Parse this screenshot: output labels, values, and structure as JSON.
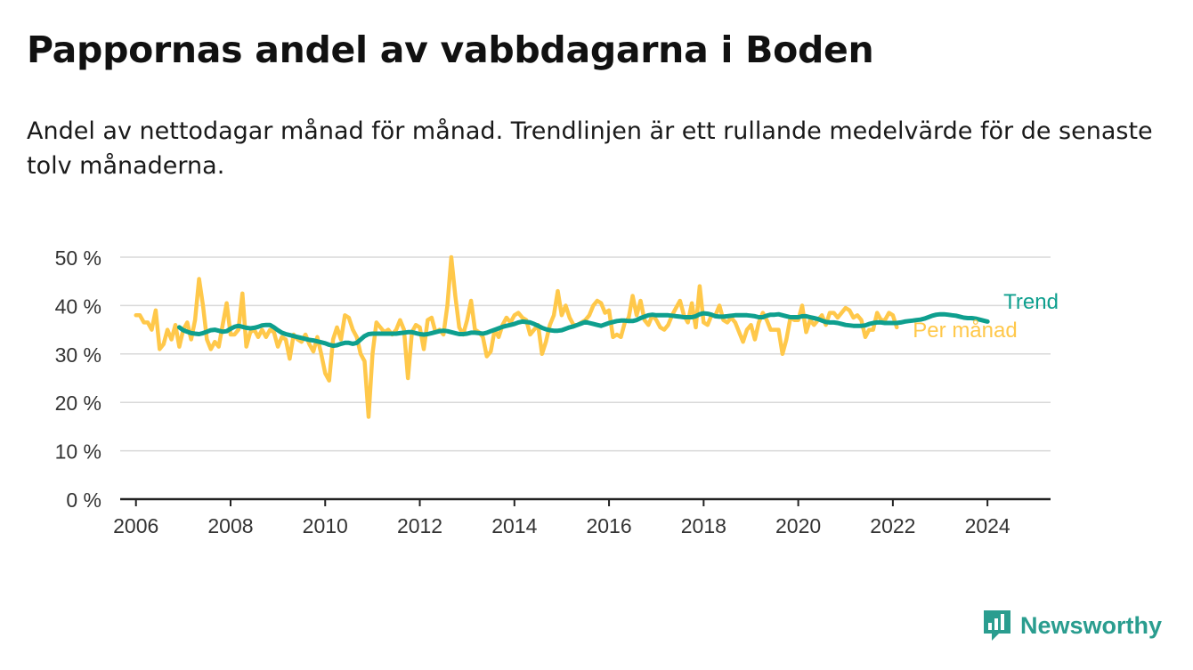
{
  "title": "Pappornas andel av vabbdagarna i Boden",
  "subtitle": "Andel av nettodagar månad för månad. Trendlinjen är ett rullande medelvärde för de senaste tolv månaderna.",
  "brand": {
    "name": "Newsworthy",
    "icon": "newsworthy-chart-logo-icon"
  },
  "colors": {
    "trend": "#0e9f8e",
    "monthly": "#ffc84a",
    "grid": "#d9d9d9",
    "axis": "#222222",
    "tick_text": "#333333"
  },
  "chart_data": {
    "type": "line",
    "title": "Pappornas andel av vabbdagarna i Boden",
    "ylabel": "",
    "xlabel": "",
    "ylim": [
      0,
      50
    ],
    "xlim": [
      "2005-09",
      "2025-05"
    ],
    "grid": true,
    "y_ticks": [
      "0 %",
      "10 %",
      "20 %",
      "30 %",
      "40 %",
      "50 %"
    ],
    "y_tick_values": [
      0,
      10,
      20,
      30,
      40,
      50
    ],
    "x_ticks": [
      "2006",
      "2008",
      "2010",
      "2012",
      "2014",
      "2016",
      "2018",
      "2020",
      "2022",
      "2024"
    ],
    "legend": "right-end labels",
    "series": [
      {
        "name": "Per månad",
        "start": "2006-01",
        "values": [
          38,
          38,
          36.5,
          36.5,
          35,
          39,
          31,
          32,
          35,
          33,
          36,
          31.5,
          35,
          36.5,
          33,
          37,
          45.5,
          40,
          33,
          31,
          32.5,
          31.5,
          36,
          40.5,
          34,
          34,
          35,
          42.5,
          31.5,
          34.5,
          35,
          33.5,
          35,
          33.5,
          35,
          34.5,
          31.5,
          33.5,
          33,
          29,
          34,
          33,
          32.5,
          34,
          32,
          30.5,
          33.5,
          30,
          26,
          24.5,
          33,
          35.5,
          33,
          38,
          37.5,
          35,
          33.5,
          30,
          28.5,
          17,
          30,
          36.5,
          35.5,
          34.5,
          35,
          34,
          35,
          37,
          35,
          25,
          34.5,
          36,
          35.5,
          31,
          37,
          37.5,
          34.5,
          35,
          34,
          40,
          50,
          42,
          35.5,
          34,
          37,
          41,
          35,
          34.5,
          33.5,
          29.5,
          30.5,
          35,
          33.5,
          36,
          37.5,
          36.5,
          38,
          38.5,
          37.5,
          37,
          34,
          35,
          36,
          30,
          32.5,
          36,
          38,
          43,
          38,
          40,
          37.5,
          36,
          36,
          36.5,
          37,
          38,
          40,
          41,
          40.5,
          38.5,
          39,
          33.5,
          34,
          33.5,
          36.5,
          37.5,
          42,
          38,
          41,
          37,
          36,
          38,
          37,
          35.5,
          35,
          36,
          38,
          39.5,
          41,
          38,
          36.5,
          40.5,
          35.5,
          44,
          36.5,
          36,
          38,
          38,
          40,
          37,
          36.5,
          37.5,
          36.5,
          34.5,
          32.5,
          35,
          36,
          33,
          36.5,
          38.5,
          37,
          35,
          35,
          35,
          30,
          33,
          37.5,
          37,
          37,
          40,
          34.5,
          37,
          36,
          37,
          38,
          36,
          38.5,
          38.5,
          37.5,
          38.5,
          39.5,
          39,
          37.5,
          38,
          37,
          33.5,
          35,
          35,
          38.5,
          37,
          37,
          38.5,
          38,
          35.5
        ]
      },
      {
        "name": "Trend",
        "start": "2006-12",
        "values": [
          35.5,
          34.9,
          34.6,
          34.3,
          34.2,
          34.1,
          34.3,
          34.6,
          34.9,
          35,
          34.8,
          34.6,
          34.7,
          35.2,
          35.6,
          35.8,
          35.6,
          35.4,
          35.3,
          35.4,
          35.6,
          35.9,
          36,
          36,
          35.5,
          34.9,
          34.4,
          34.1,
          33.9,
          33.7,
          33.5,
          33.3,
          33.1,
          32.9,
          32.8,
          32.6,
          32.4,
          32.2,
          31.9,
          31.7,
          31.8,
          32.1,
          32.3,
          32.3,
          32.1,
          32.3,
          33,
          33.7,
          34.1,
          34.2,
          34.2,
          34.2,
          34.2,
          34.2,
          34.2,
          34.2,
          34.3,
          34.4,
          34.5,
          34.5,
          34.3,
          34.1,
          34,
          34.1,
          34.3,
          34.5,
          34.7,
          34.8,
          34.7,
          34.5,
          34.3,
          34.1,
          34.1,
          34.2,
          34.4,
          34.4,
          34.3,
          34.2,
          34.4,
          34.7,
          35,
          35.3,
          35.6,
          35.8,
          36,
          36.2,
          36.5,
          36.7,
          36.6,
          36.5,
          36.2,
          35.8,
          35.4,
          35.1,
          34.9,
          34.8,
          34.8,
          34.9,
          35.2,
          35.5,
          35.7,
          36,
          36.3,
          36.6,
          36.4,
          36.2,
          36,
          35.8,
          36.1,
          36.4,
          36.6,
          36.8,
          36.9,
          36.9,
          36.8,
          36.8,
          37,
          37.4,
          37.7,
          38,
          38.1,
          38,
          38,
          38,
          38,
          37.9,
          37.8,
          37.7,
          37.6,
          37.6,
          37.6,
          37.8,
          38.2,
          38.4,
          38.3,
          38.1,
          37.8,
          37.7,
          37.7,
          37.8,
          37.9,
          38,
          38,
          38,
          38,
          37.9,
          37.8,
          37.6,
          37.6,
          37.9,
          38.1,
          38.1,
          38.2,
          38,
          37.8,
          37.6,
          37.6,
          37.6,
          37.8,
          37.8,
          37.6,
          37.4,
          37.2,
          36.9,
          36.6,
          36.5,
          36.5,
          36.4,
          36.2,
          36,
          35.9,
          35.8,
          35.8,
          35.8,
          35.9,
          36.2,
          36.4,
          36.5,
          36.5,
          36.4,
          36.4,
          36.4,
          36.4,
          36.5,
          36.7,
          36.8,
          36.9,
          37,
          37.1,
          37.3,
          37.6,
          37.9,
          38.1,
          38.2,
          38.2,
          38.1,
          38,
          37.9,
          37.7,
          37.5,
          37.4,
          37.4,
          37.3,
          37.1,
          36.9,
          36.7
        ]
      }
    ]
  }
}
